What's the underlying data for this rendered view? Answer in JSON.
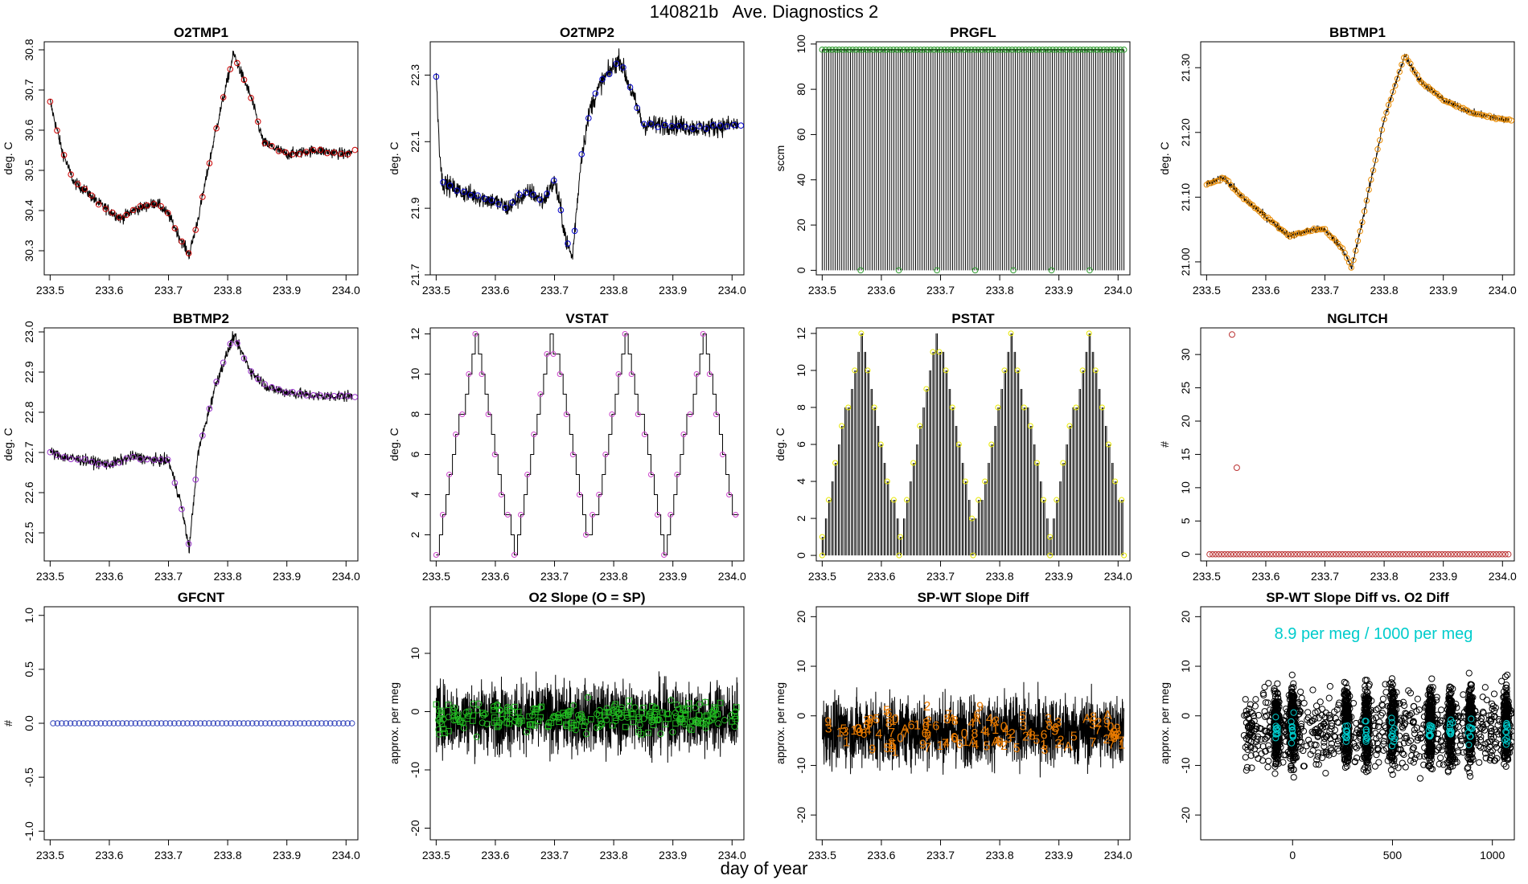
{
  "page": {
    "title": "140821b   Ave. Diagnostics 2",
    "xlabel": "day of year"
  },
  "chart_data": [
    {
      "id": "o2tmp1",
      "type": "line",
      "title": "O2TMP1",
      "ylabel": "deg. C",
      "xlim": [
        233.49,
        234.02
      ],
      "ylim": [
        30.24,
        30.82
      ],
      "xticks": [
        233.5,
        233.6,
        233.7,
        233.8,
        233.9,
        234.0
      ],
      "xticklabels": [
        "233.5",
        "233.6",
        "233.7",
        "233.8",
        "233.9",
        "234.0"
      ],
      "yticks": [
        30.3,
        30.4,
        30.5,
        30.6,
        30.7,
        30.8
      ],
      "yticklabels": [
        "30.3",
        "30.4",
        "30.5",
        "30.6",
        "30.7",
        "30.8"
      ],
      "series_color": "#000000",
      "marker": "circle",
      "marker_color": "#cc0000",
      "noise": 0.012,
      "x": [
        233.5,
        233.52,
        233.54,
        233.56,
        233.58,
        233.6,
        233.62,
        233.64,
        233.66,
        233.68,
        233.7,
        233.72,
        233.735,
        233.75,
        233.78,
        233.81,
        233.84,
        233.86,
        233.9,
        233.95,
        234.0,
        234.015
      ],
      "y": [
        30.67,
        30.55,
        30.47,
        30.45,
        30.42,
        30.4,
        30.38,
        30.4,
        30.41,
        30.42,
        30.39,
        30.33,
        30.29,
        30.38,
        30.6,
        30.79,
        30.68,
        30.57,
        30.54,
        30.55,
        30.54,
        30.55
      ]
    },
    {
      "id": "o2tmp2",
      "type": "line",
      "title": "O2TMP2",
      "ylabel": "deg. C",
      "xlim": [
        233.49,
        234.02
      ],
      "ylim": [
        21.7,
        22.4
      ],
      "xticks": [
        233.5,
        233.6,
        233.7,
        233.8,
        233.9,
        234.0
      ],
      "xticklabels": [
        "233.5",
        "233.6",
        "233.7",
        "233.8",
        "233.9",
        "234.0"
      ],
      "yticks": [
        21.7,
        21.9,
        22.1,
        22.3
      ],
      "yticklabels": [
        "21.7",
        "21.9",
        "22.1",
        "22.3"
      ],
      "series_color": "#000000",
      "marker": "circle",
      "marker_color": "#0000cc",
      "noise": 0.025,
      "x": [
        233.5,
        233.505,
        233.51,
        233.52,
        233.54,
        233.56,
        233.58,
        233.6,
        233.62,
        233.64,
        233.66,
        233.68,
        233.7,
        233.71,
        233.72,
        233.73,
        233.745,
        233.76,
        233.78,
        233.81,
        233.83,
        233.85,
        233.9,
        233.95,
        234.0,
        234.015
      ],
      "y": [
        22.3,
        22.1,
        21.98,
        21.97,
        21.95,
        21.94,
        21.93,
        21.92,
        21.9,
        21.93,
        21.95,
        21.92,
        21.98,
        21.9,
        21.8,
        21.75,
        22.05,
        22.2,
        22.28,
        22.35,
        22.25,
        22.15,
        22.15,
        22.14,
        22.15,
        22.15
      ]
    },
    {
      "id": "prgfl",
      "type": "line",
      "title": "PRGFL",
      "ylabel": "sccm",
      "xlim": [
        233.49,
        234.02
      ],
      "ylim": [
        -2,
        101
      ],
      "xticks": [
        233.5,
        233.6,
        233.7,
        233.8,
        233.9,
        234.0
      ],
      "xticklabels": [
        "233.5",
        "233.6",
        "233.7",
        "233.8",
        "233.9",
        "234.0"
      ],
      "yticks": [
        0,
        20,
        40,
        60,
        80,
        100
      ],
      "yticklabels": [
        "0",
        "20",
        "40",
        "60",
        "80",
        "100"
      ],
      "series_color": "#000000",
      "marker": "circle",
      "marker_color": "#2a9a2a",
      "pattern": "prgfl",
      "high": 97.5,
      "low": 0,
      "xstart": 233.5,
      "xend": 234.01
    },
    {
      "id": "bbtmp1",
      "type": "line",
      "title": "BBTMP1",
      "ylabel": "deg. C",
      "xlim": [
        233.49,
        234.02
      ],
      "ylim": [
        20.98,
        21.34
      ],
      "xticks": [
        233.5,
        233.6,
        233.7,
        233.8,
        233.9,
        234.0
      ],
      "xticklabels": [
        "233.5",
        "233.6",
        "233.7",
        "233.8",
        "233.9",
        "234.0"
      ],
      "yticks": [
        21.0,
        21.1,
        21.2,
        21.3
      ],
      "yticklabels": [
        "21.00",
        "21.10",
        "21.20",
        "21.30"
      ],
      "series_color": "#000000",
      "marker": "circle",
      "marker_color": "#e88a00",
      "noise": 0.005,
      "dense": true,
      "x": [
        233.5,
        233.53,
        233.56,
        233.6,
        233.64,
        233.68,
        233.7,
        233.73,
        233.745,
        233.76,
        233.8,
        233.835,
        233.86,
        233.9,
        233.95,
        234.0,
        234.015
      ],
      "y": [
        21.12,
        21.13,
        21.1,
        21.07,
        21.04,
        21.05,
        21.05,
        21.02,
        20.99,
        21.05,
        21.22,
        21.32,
        21.28,
        21.25,
        21.23,
        21.22,
        21.22
      ]
    },
    {
      "id": "bbtmp2",
      "type": "line",
      "title": "BBTMP2",
      "ylabel": "deg. C",
      "xlim": [
        233.49,
        234.02
      ],
      "ylim": [
        22.43,
        23.01
      ],
      "xticks": [
        233.5,
        233.6,
        233.7,
        233.8,
        233.9,
        234.0
      ],
      "xticklabels": [
        "233.5",
        "233.6",
        "233.7",
        "233.8",
        "233.9",
        "234.0"
      ],
      "yticks": [
        22.5,
        22.6,
        22.7,
        22.8,
        22.9,
        23.0
      ],
      "yticklabels": [
        "22.5",
        "22.6",
        "22.7",
        "22.8",
        "22.9",
        "23.0"
      ],
      "series_color": "#000000",
      "marker": "circle",
      "marker_color": "#9933cc",
      "noise": 0.012,
      "x": [
        233.5,
        233.52,
        233.56,
        233.6,
        233.64,
        233.68,
        233.7,
        233.72,
        233.735,
        233.75,
        233.78,
        233.81,
        233.84,
        233.87,
        233.9,
        233.95,
        234.0,
        234.015
      ],
      "y": [
        22.7,
        22.69,
        22.68,
        22.67,
        22.69,
        22.68,
        22.68,
        22.58,
        22.46,
        22.7,
        22.87,
        22.99,
        22.9,
        22.86,
        22.85,
        22.84,
        22.84,
        22.84
      ]
    },
    {
      "id": "vstat",
      "type": "line",
      "title": "VSTAT",
      "ylabel": "deg. C",
      "xlim": [
        233.49,
        234.02
      ],
      "ylim": [
        0.7,
        12.3
      ],
      "xticks": [
        233.5,
        233.6,
        233.7,
        233.8,
        233.9,
        234.0
      ],
      "xticklabels": [
        "233.5",
        "233.6",
        "233.7",
        "233.8",
        "233.9",
        "234.0"
      ],
      "yticks": [
        2,
        4,
        6,
        8,
        10,
        12
      ],
      "yticklabels": [
        "2",
        "4",
        "6",
        "8",
        "10",
        "12"
      ],
      "series_color": "#000000",
      "marker": "circle",
      "marker_color": "#cc44cc",
      "pattern": "triangle_step",
      "xstart": 233.5,
      "xend": 234.01,
      "peaks": [
        233.565,
        233.695,
        233.82,
        233.95
      ],
      "vmin": 1,
      "vmax": 12
    },
    {
      "id": "pstat",
      "type": "line",
      "title": "PSTAT",
      "ylabel": "deg. C",
      "xlim": [
        233.49,
        234.02
      ],
      "ylim": [
        -0.3,
        12.3
      ],
      "xticks": [
        233.5,
        233.6,
        233.7,
        233.8,
        233.9,
        234.0
      ],
      "xticklabels": [
        "233.5",
        "233.6",
        "233.7",
        "233.8",
        "233.9",
        "234.0"
      ],
      "yticks": [
        0,
        2,
        4,
        6,
        8,
        10,
        12
      ],
      "yticklabels": [
        "0",
        "2",
        "4",
        "6",
        "8",
        "10",
        "12"
      ],
      "series_color": "#000000",
      "marker": "circle",
      "marker_color": "#e8e800",
      "pattern": "triangle_spike",
      "xstart": 233.5,
      "xend": 234.01,
      "peaks": [
        233.565,
        233.695,
        233.82,
        233.95
      ],
      "vmin": 1,
      "vmax": 12
    },
    {
      "id": "nglitch",
      "type": "scatter",
      "title": "NGLITCH",
      "ylabel": "#",
      "xlim": [
        233.49,
        234.02
      ],
      "ylim": [
        -1,
        34
      ],
      "xticks": [
        233.5,
        233.6,
        233.7,
        233.8,
        233.9,
        234.0
      ],
      "xticklabels": [
        "233.5",
        "233.6",
        "233.7",
        "233.8",
        "233.9",
        "234.0"
      ],
      "yticks": [
        0,
        5,
        10,
        15,
        20,
        25,
        30
      ],
      "yticklabels": [
        "0",
        "5",
        "10",
        "15",
        "20",
        "25",
        "30"
      ],
      "marker": "circle",
      "marker_color": "#bb3333",
      "pattern": "constant",
      "value": 0,
      "xstart": 233.505,
      "xend": 234.01,
      "count": 100,
      "outliers": [
        {
          "x": 233.543,
          "y": 33
        },
        {
          "x": 233.551,
          "y": 13
        }
      ]
    },
    {
      "id": "gfcnt",
      "type": "scatter",
      "title": "GFCNT",
      "ylabel": "#",
      "xlim": [
        233.49,
        234.02
      ],
      "ylim": [
        -1.08,
        1.08
      ],
      "xticks": [
        233.5,
        233.6,
        233.7,
        233.8,
        233.9,
        234.0
      ],
      "xticklabels": [
        "233.5",
        "233.6",
        "233.7",
        "233.8",
        "233.9",
        "234.0"
      ],
      "yticks": [
        -1.0,
        -0.5,
        0.0,
        0.5,
        1.0
      ],
      "yticklabels": [
        "-1.0",
        "-0.5",
        "0.0",
        "0.5",
        "1.0"
      ],
      "marker": "circle",
      "marker_color": "#3344bb",
      "pattern": "constant",
      "value": 0,
      "xstart": 233.505,
      "xend": 234.01,
      "count": 70
    },
    {
      "id": "o2slope",
      "type": "line",
      "title": "O2 Slope (O = SP)",
      "ylabel": "approx. per meg",
      "xlim": [
        233.49,
        234.02
      ],
      "ylim": [
        -22,
        18
      ],
      "xticks": [
        233.5,
        233.6,
        233.7,
        233.8,
        233.9,
        234.0
      ],
      "xticklabels": [
        "233.5",
        "233.6",
        "233.7",
        "233.8",
        "233.9",
        "234.0"
      ],
      "yticks": [
        -20,
        -10,
        0,
        10
      ],
      "yticklabels": [
        "-20",
        "-10",
        "0",
        "10"
      ],
      "series_color": "#000000",
      "marker": "mixed",
      "marker_color": "#22bb22",
      "pattern": "noise",
      "xstart": 233.5,
      "xend": 234.01,
      "center": -1,
      "spread": 5
    },
    {
      "id": "spwt",
      "type": "line",
      "title": "SP-WT Slope Diff",
      "ylabel": "approx. per meg",
      "xlim": [
        233.49,
        234.02
      ],
      "ylim": [
        -25,
        22
      ],
      "xticks": [
        233.5,
        233.6,
        233.7,
        233.8,
        233.9,
        234.0
      ],
      "xticklabels": [
        "233.5",
        "233.6",
        "233.7",
        "233.8",
        "233.9",
        "234.0"
      ],
      "yticks": [
        -20,
        -10,
        0,
        10,
        20
      ],
      "yticklabels": [
        "-20",
        "-10",
        "0",
        "10",
        "20"
      ],
      "series_color": "#000000",
      "marker": "text",
      "marker_color": "#e87a00",
      "pattern": "noise",
      "xstart": 233.5,
      "xend": 234.01,
      "center": -3,
      "spread": 6,
      "label_glyphs": [
        "2",
        "1",
        "5",
        "3",
        "8",
        "6",
        "A",
        "0",
        "9",
        "7",
        "4"
      ]
    },
    {
      "id": "spwtvso2",
      "type": "scatter",
      "title": "SP-WT Slope Diff vs. O2 Diff",
      "ylabel": "approx. per meg",
      "xlim": [
        -460,
        1110
      ],
      "ylim": [
        -25,
        22
      ],
      "xticks": [
        0,
        500,
        1000
      ],
      "xticklabels": [
        "0",
        "500",
        "1000"
      ],
      "yticks": [
        -20,
        -10,
        0,
        10,
        20
      ],
      "yticklabels": [
        "-20",
        "-10",
        "0",
        "10",
        "20"
      ],
      "marker": "circle",
      "marker_color": "#000000",
      "label_color": "#00cccc",
      "pattern": "clusters",
      "clusters": [
        -80,
        0,
        270,
        370,
        500,
        690,
        790,
        890,
        1070
      ],
      "annotation": "8.9 per meg / 1000 per meg"
    }
  ]
}
